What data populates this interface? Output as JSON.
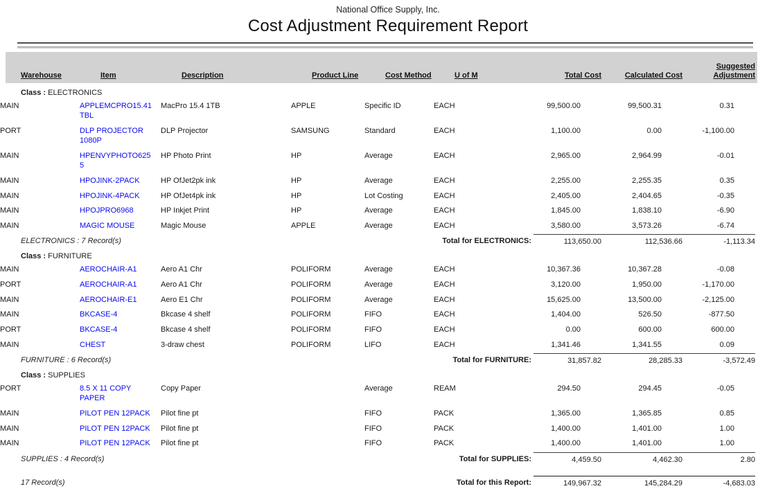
{
  "header": {
    "company": "National Office Supply, Inc.",
    "title": "Cost Adjustment Requirement Report"
  },
  "columns": [
    "Warehouse",
    "Item",
    "Description",
    "Product Line",
    "Cost Method",
    "U of M",
    "Total Cost",
    "Calculated Cost",
    "Suggested Adjustment"
  ],
  "colors": {
    "item_link_blue": "#0a0af0",
    "header_band_gray": "#d2d2d2"
  },
  "sections": [
    {
      "class_label": "Class :",
      "class_name": "ELECTRONICS",
      "rows": [
        {
          "warehouse": "MAIN",
          "item": "APPLEMCPRO15.41TBL",
          "description": "MacPro 15.4 1TB",
          "product_line": "APPLE",
          "cost_method": "Specific ID",
          "uom": "EACH",
          "total_cost": "99,500.00",
          "calculated_cost": "99,500.31",
          "suggested_adjustment": "0.31"
        },
        {
          "warehouse": "PORT",
          "item": "DLP PROJECTOR 1080P",
          "description": "DLP Projector",
          "product_line": "SAMSUNG",
          "cost_method": "Standard",
          "uom": "EACH",
          "total_cost": "1,100.00",
          "calculated_cost": "0.00",
          "suggested_adjustment": "-1,100.00"
        },
        {
          "warehouse": "MAIN",
          "item": "HPENVYPHOTO6255",
          "description": "HP Photo Print",
          "product_line": "HP",
          "cost_method": "Average",
          "uom": "EACH",
          "total_cost": "2,965.00",
          "calculated_cost": "2,964.99",
          "suggested_adjustment": "-0.01"
        },
        {
          "warehouse": "MAIN",
          "item": "HPOJINK-2PACK",
          "description": "HP OfJet2pk ink",
          "product_line": "HP",
          "cost_method": "Average",
          "uom": "EACH",
          "total_cost": "2,255.00",
          "calculated_cost": "2,255.35",
          "suggested_adjustment": "0.35"
        },
        {
          "warehouse": "MAIN",
          "item": "HPOJINK-4PACK",
          "description": "HP OfJet4pk ink",
          "product_line": "HP",
          "cost_method": "Lot Costing",
          "uom": "EACH",
          "total_cost": "2,405.00",
          "calculated_cost": "2,404.65",
          "suggested_adjustment": "-0.35"
        },
        {
          "warehouse": "MAIN",
          "item": "HPOJPRO6968",
          "description": "HP Inkjet Print",
          "product_line": "HP",
          "cost_method": "Average",
          "uom": "EACH",
          "total_cost": "1,845.00",
          "calculated_cost": "1,838.10",
          "suggested_adjustment": "-6.90"
        },
        {
          "warehouse": "MAIN",
          "item": "MAGIC MOUSE",
          "description": "Magic Mouse",
          "product_line": "APPLE",
          "cost_method": "Average",
          "uom": "EACH",
          "total_cost": "3,580.00",
          "calculated_cost": "3,573.26",
          "suggested_adjustment": "-6.74"
        }
      ],
      "record_count": "ELECTRONICS : 7 Record(s)",
      "total_label": "Total for ELECTRONICS:",
      "totals": {
        "total_cost": "113,650.00",
        "calculated_cost": "112,536.66",
        "suggested_adjustment": "-1,113.34"
      }
    },
    {
      "class_label": "Class :",
      "class_name": "FURNITURE",
      "rows": [
        {
          "warehouse": "MAIN",
          "item": "AEROCHAIR-A1",
          "description": "Aero A1 Chr",
          "product_line": "POLIFORM",
          "cost_method": "Average",
          "uom": "EACH",
          "total_cost": "10,367.36",
          "calculated_cost": "10,367.28",
          "suggested_adjustment": "-0.08"
        },
        {
          "warehouse": "PORT",
          "item": "AEROCHAIR-A1",
          "description": "Aero A1 Chr",
          "product_line": "POLIFORM",
          "cost_method": "Average",
          "uom": "EACH",
          "total_cost": "3,120.00",
          "calculated_cost": "1,950.00",
          "suggested_adjustment": "-1,170.00"
        },
        {
          "warehouse": "MAIN",
          "item": "AEROCHAIR-E1",
          "description": "Aero E1 Chr",
          "product_line": "POLIFORM",
          "cost_method": "Average",
          "uom": "EACH",
          "total_cost": "15,625.00",
          "calculated_cost": "13,500.00",
          "suggested_adjustment": "-2,125.00"
        },
        {
          "warehouse": "MAIN",
          "item": "BKCASE-4",
          "description": "Bkcase 4 shelf",
          "product_line": "POLIFORM",
          "cost_method": "FIFO",
          "uom": "EACH",
          "total_cost": "1,404.00",
          "calculated_cost": "526.50",
          "suggested_adjustment": "-877.50"
        },
        {
          "warehouse": "PORT",
          "item": "BKCASE-4",
          "description": "Bkcase 4 shelf",
          "product_line": "POLIFORM",
          "cost_method": "FIFO",
          "uom": "EACH",
          "total_cost": "0.00",
          "calculated_cost": "600.00",
          "suggested_adjustment": "600.00"
        },
        {
          "warehouse": "MAIN",
          "item": "CHEST",
          "description": "3-draw chest",
          "product_line": "POLIFORM",
          "cost_method": "LIFO",
          "uom": "EACH",
          "total_cost": "1,341.46",
          "calculated_cost": "1,341.55",
          "suggested_adjustment": "0.09"
        }
      ],
      "record_count": "FURNITURE : 6 Record(s)",
      "total_label": "Total for FURNITURE:",
      "totals": {
        "total_cost": "31,857.82",
        "calculated_cost": "28,285.33",
        "suggested_adjustment": "-3,572.49"
      }
    },
    {
      "class_label": "Class :",
      "class_name": "SUPPLIES",
      "rows": [
        {
          "warehouse": "PORT",
          "item": "8.5 X 11 COPY PAPER",
          "description": "Copy Paper",
          "product_line": "",
          "cost_method": "Average",
          "uom": "REAM",
          "total_cost": "294.50",
          "calculated_cost": "294.45",
          "suggested_adjustment": "-0.05"
        },
        {
          "warehouse": "MAIN",
          "item": "PILOT PEN 12PACK",
          "description": "Pilot fine pt",
          "product_line": "",
          "cost_method": "FIFO",
          "uom": "PACK",
          "total_cost": "1,365.00",
          "calculated_cost": "1,365.85",
          "suggested_adjustment": "0.85"
        },
        {
          "warehouse": "MAIN",
          "item": "PILOT PEN 12PACK",
          "description": "Pilot fine pt",
          "product_line": "",
          "cost_method": "FIFO",
          "uom": "PACK",
          "total_cost": "1,400.00",
          "calculated_cost": "1,401.00",
          "suggested_adjustment": "1.00"
        },
        {
          "warehouse": "MAIN",
          "item": "PILOT PEN 12PACK",
          "description": "Pilot fine pt",
          "product_line": "",
          "cost_method": "FIFO",
          "uom": "PACK",
          "total_cost": "1,400.00",
          "calculated_cost": "1,401.00",
          "suggested_adjustment": "1.00"
        }
      ],
      "record_count": "SUPPLIES : 4 Record(s)",
      "total_label": "Total for SUPPLIES:",
      "totals": {
        "total_cost": "4,459.50",
        "calculated_cost": "4,462.30",
        "suggested_adjustment": "2.80"
      }
    }
  ],
  "report_footer": {
    "record_count": "17 Record(s)",
    "total_label": "Total for this Report:",
    "totals": {
      "total_cost": "149,967.32",
      "calculated_cost": "145,284.29",
      "suggested_adjustment": "-4,683.03"
    }
  }
}
